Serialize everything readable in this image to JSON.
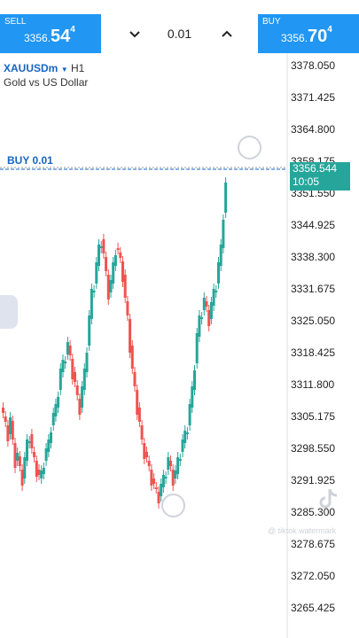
{
  "trade_bar": {
    "sell": {
      "label": "SELL",
      "price_prefix": "3356.",
      "price_big": "54",
      "price_sup": "4"
    },
    "buy": {
      "label": "BUY",
      "price_prefix": "3356.",
      "price_big": "70",
      "price_sup": "4"
    },
    "lot": "0.01"
  },
  "chart": {
    "symbol": "XAUUSDm",
    "timeframe": "H1",
    "description": "Gold vs US Dollar",
    "buy_line_label": "BUY 0.01",
    "current_price": "3356.544",
    "countdown": "10:05",
    "price_axis": [
      "3378.050",
      "3371.425",
      "3364.800",
      "3358.175",
      "3351.550",
      "3344.925",
      "3338.300",
      "3331.675",
      "3325.050",
      "3318.425",
      "3311.800",
      "3305.175",
      "3298.550",
      "3291.925",
      "3285.300",
      "3278.675",
      "3272.050",
      "3265.425"
    ],
    "colors": {
      "bull": "#26a69a",
      "bear": "#ef5350",
      "accent": "#2196f3"
    }
  },
  "watermark": {
    "text": "@ tiktok watermark"
  }
}
